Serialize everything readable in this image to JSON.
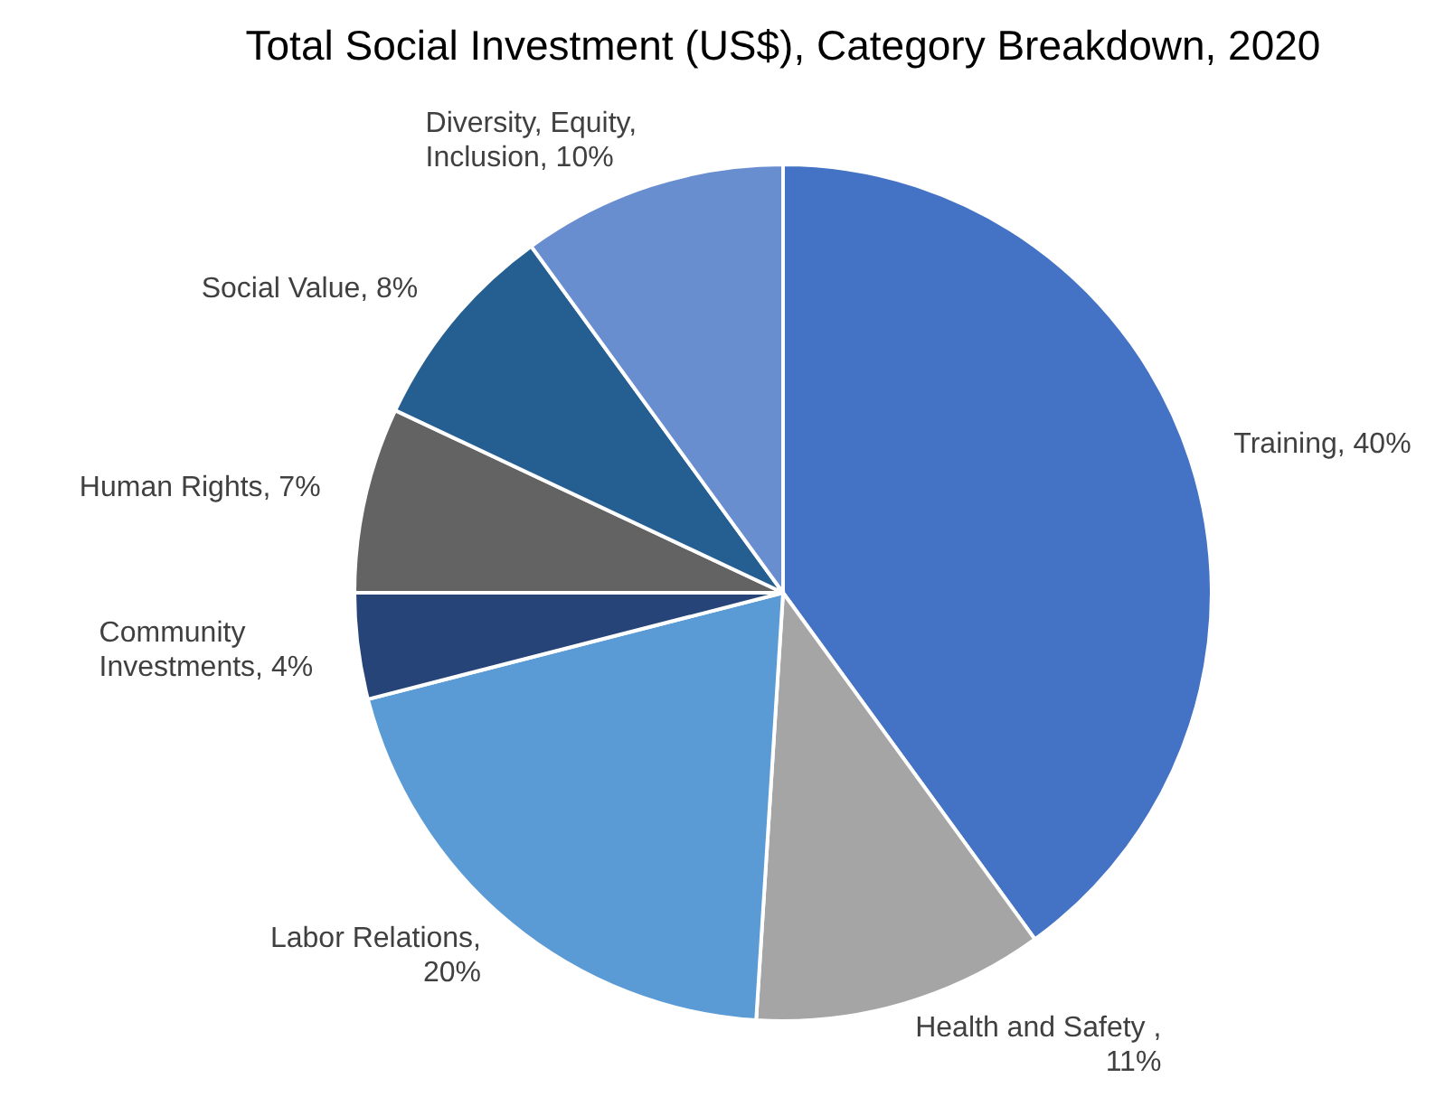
{
  "chart_data": {
    "type": "pie",
    "title": "Total Social Investment (US$), Category Breakdown, 2020",
    "categories": [
      "Training",
      "Health and Safety",
      "Labor Relations",
      "Community Investments",
      "Human Rights",
      "Social Value",
      "Diversity, Equity, Inclusion"
    ],
    "values": [
      40,
      11,
      20,
      4,
      7,
      8,
      10
    ],
    "colors": [
      "#4472c4",
      "#a5a5a5",
      "#5b9bd5",
      "#264478",
      "#636363",
      "#255e91",
      "#698ed0"
    ],
    "value_labels": [
      ", 40%",
      " ,\n11%",
      ",\n20%",
      ", 4%",
      ", 7%",
      ", 8%",
      ", 10%"
    ]
  }
}
